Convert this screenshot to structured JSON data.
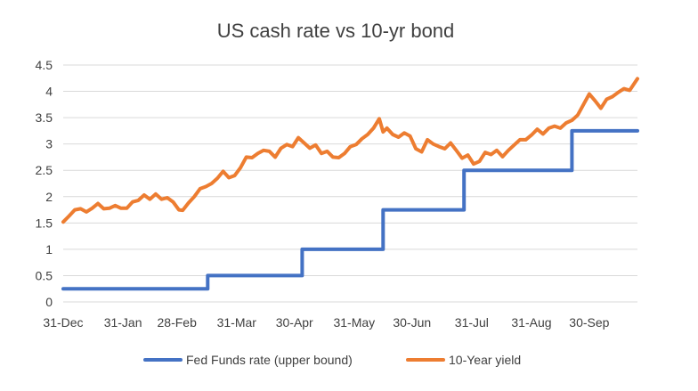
{
  "chart_data": {
    "type": "line",
    "title": "US cash rate vs 10-yr bond",
    "xlabel": "",
    "ylabel": "",
    "ylim": [
      0,
      4.5
    ],
    "y_ticks": [
      "0",
      "0.5",
      "1",
      "1.5",
      "2",
      "2.5",
      "3",
      "3.5",
      "4",
      "4.5"
    ],
    "x_ticks": [
      "31-Dec",
      "31-Jan",
      "28-Feb",
      "31-Mar",
      "30-Apr",
      "31-May",
      "30-Jun",
      "31-Jul",
      "31-Aug",
      "30-Sep"
    ],
    "x_range_days": [
      0,
      298
    ],
    "x_tick_days": [
      0,
      31,
      59,
      90,
      120,
      151,
      181,
      212,
      243,
      273
    ],
    "grid": true,
    "legend": "bottom",
    "series": [
      {
        "name": "Fed Funds rate (upper bound)",
        "color": "#4472c4",
        "step": true,
        "x": [
          0,
          75,
          75,
          124,
          124,
          166,
          166,
          208,
          208,
          264,
          264,
          298
        ],
        "y": [
          0.25,
          0.25,
          0.5,
          0.5,
          1.0,
          1.0,
          1.75,
          1.75,
          2.5,
          2.5,
          3.25,
          3.25
        ]
      },
      {
        "name": "10-Year yield",
        "color": "#ed7d31",
        "step": false,
        "x": [
          0,
          3,
          6,
          9,
          12,
          15,
          18,
          21,
          24,
          27,
          30,
          33,
          36,
          39,
          42,
          45,
          48,
          51,
          54,
          57,
          60,
          62,
          65,
          68,
          71,
          74,
          77,
          80,
          83,
          86,
          89,
          92,
          95,
          98,
          101,
          104,
          107,
          110,
          113,
          116,
          119,
          122,
          125,
          128,
          131,
          134,
          137,
          140,
          143,
          146,
          149,
          152,
          155,
          158,
          161,
          164,
          166,
          168,
          171,
          174,
          177,
          180,
          183,
          186,
          189,
          192,
          195,
          198,
          201,
          204,
          207,
          210,
          213,
          216,
          219,
          222,
          225,
          228,
          231,
          234,
          237,
          240,
          243,
          246,
          249,
          252,
          255,
          258,
          261,
          264,
          267,
          270,
          273,
          276,
          279,
          282,
          285,
          288,
          291,
          294,
          298
        ],
        "y": [
          1.52,
          1.63,
          1.75,
          1.77,
          1.71,
          1.78,
          1.87,
          1.77,
          1.78,
          1.83,
          1.78,
          1.78,
          1.9,
          1.93,
          2.03,
          1.95,
          2.05,
          1.95,
          1.98,
          1.9,
          1.75,
          1.74,
          1.88,
          2.0,
          2.15,
          2.19,
          2.25,
          2.35,
          2.48,
          2.36,
          2.4,
          2.55,
          2.75,
          2.74,
          2.82,
          2.88,
          2.86,
          2.75,
          2.92,
          2.99,
          2.95,
          3.12,
          3.02,
          2.92,
          2.98,
          2.82,
          2.86,
          2.75,
          2.74,
          2.82,
          2.95,
          2.99,
          3.1,
          3.18,
          3.3,
          3.48,
          3.23,
          3.3,
          3.18,
          3.13,
          3.21,
          3.15,
          2.91,
          2.85,
          3.08,
          3.0,
          2.95,
          2.91,
          3.02,
          2.88,
          2.73,
          2.79,
          2.62,
          2.67,
          2.84,
          2.8,
          2.88,
          2.76,
          2.88,
          2.98,
          3.08,
          3.08,
          3.17,
          3.28,
          3.19,
          3.3,
          3.34,
          3.3,
          3.4,
          3.45,
          3.55,
          3.75,
          3.95,
          3.82,
          3.68,
          3.85,
          3.9,
          3.98,
          4.05,
          4.02,
          4.24
        ]
      }
    ]
  }
}
